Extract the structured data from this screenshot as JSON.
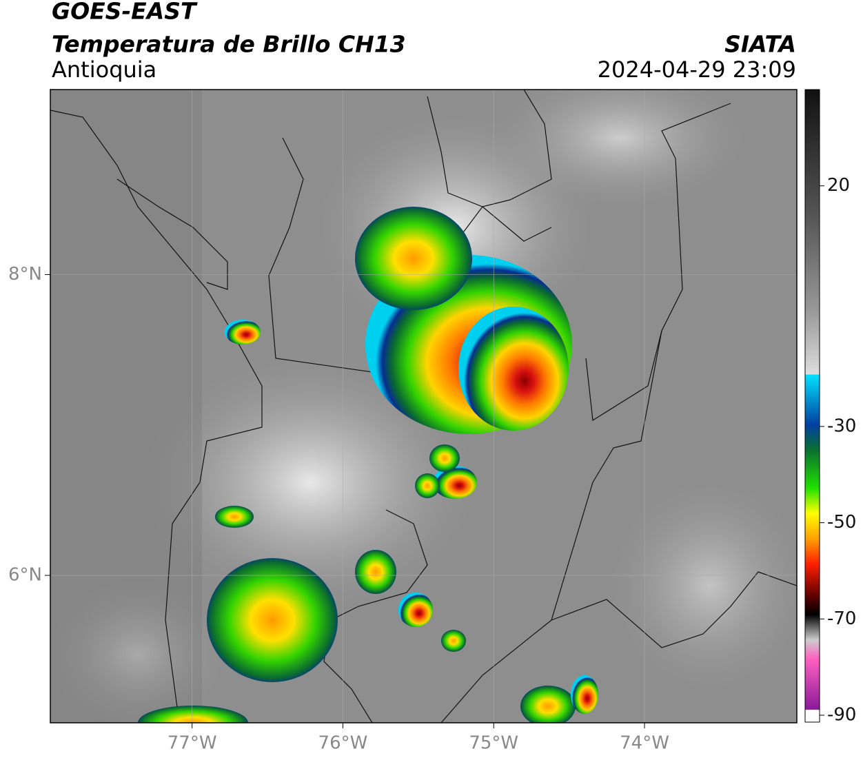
{
  "header": {
    "title": "GOES-EAST",
    "subtitle": "Temperatura de Brillo CH13",
    "region": "Antioquia",
    "source": "SIATA",
    "datetime": "2024-04-29 23:09"
  },
  "map": {
    "xlim": [
      -77.94,
      -72.99
    ],
    "ylim": [
      5.02,
      9.23
    ],
    "xticks": [
      {
        "value": -77,
        "label": "77°W"
      },
      {
        "value": -76,
        "label": "76°W"
      },
      {
        "value": -75,
        "label": "75°W"
      },
      {
        "value": -74,
        "label": "74°W"
      }
    ],
    "yticks": [
      {
        "value": 8,
        "label": "8°N"
      },
      {
        "value": 6,
        "label": "6°N"
      }
    ],
    "grid": true
  },
  "colorbar": {
    "limits": [
      -90,
      40
    ],
    "ticks": [
      20,
      -30,
      -50,
      -70,
      -90
    ]
  }
}
